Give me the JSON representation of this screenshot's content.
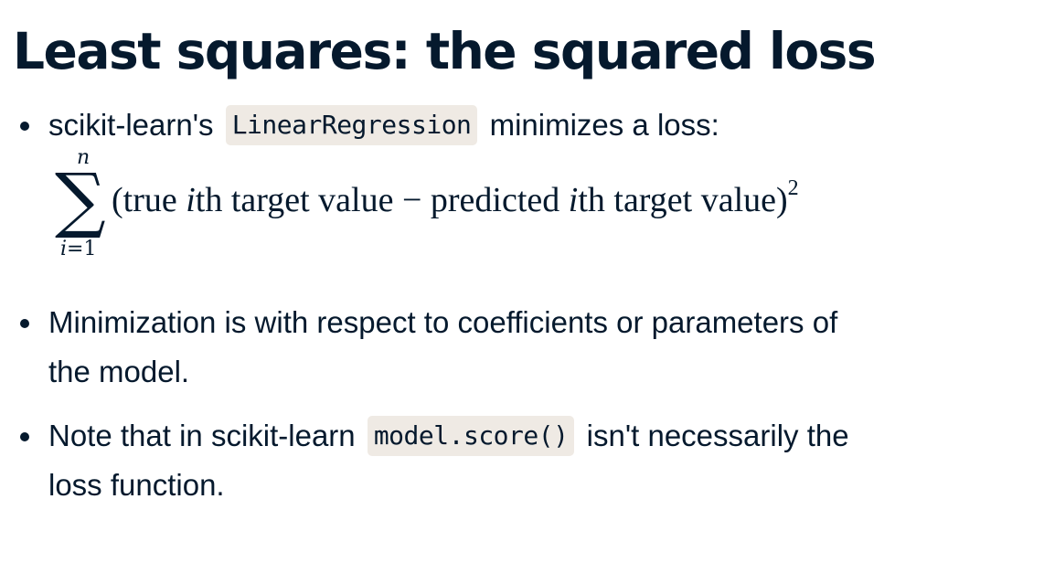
{
  "title": "Least squares: the squared loss",
  "bullets": [
    {
      "before": "scikit-learn's",
      "code": "LinearRegression",
      "after": "minimizes a loss:"
    },
    {
      "text_line1": "Minimization is with respect to coefficients or parameters of",
      "text_line2": "the model."
    },
    {
      "before": "Note that in scikit-learn",
      "code": "model.score()",
      "after_line1": "isn't necessarily the",
      "after_line2": "loss function."
    }
  ],
  "formula": {
    "upper_limit": "n",
    "sum_symbol": "∑",
    "lower_index": "i",
    "lower_eq": "=1",
    "open": "(true ",
    "i1": "i",
    "mid1": "th target value − predicted ",
    "i2": "i",
    "mid2": "th target value)",
    "exponent": "2"
  },
  "colors": {
    "text": "#05192d",
    "code_background": "#efeae4"
  }
}
